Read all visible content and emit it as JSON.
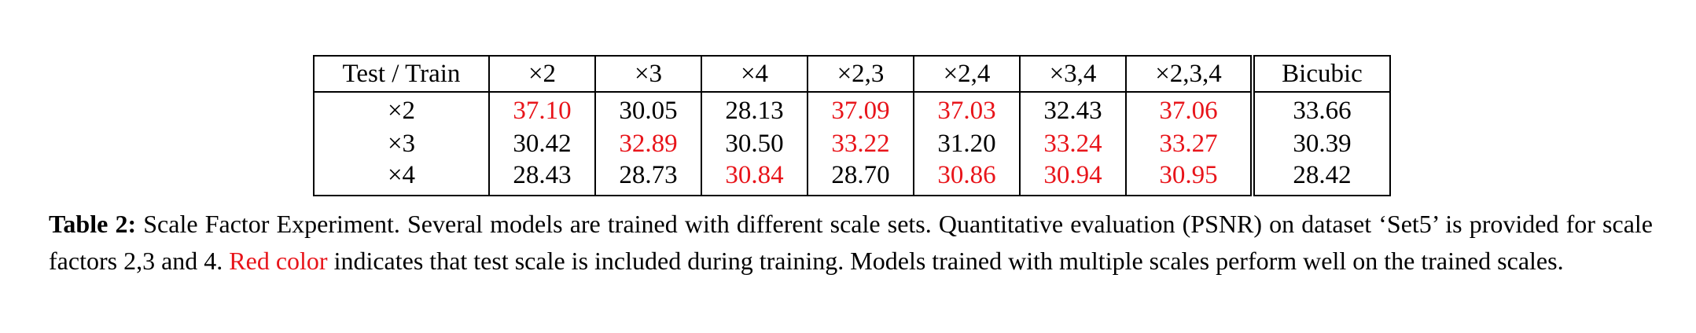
{
  "table": {
    "corner_header": "Test / Train",
    "columns": [
      "×2",
      "×3",
      "×4",
      "×2,3",
      "×2,4",
      "×3,4",
      "×2,3,4",
      "Bicubic"
    ],
    "rows": [
      {
        "label": "×2",
        "values": [
          "37.10",
          "30.05",
          "28.13",
          "37.09",
          "37.03",
          "32.43",
          "37.06",
          "33.66"
        ],
        "highlighted": [
          true,
          false,
          false,
          true,
          true,
          false,
          true,
          false
        ]
      },
      {
        "label": "×3",
        "values": [
          "30.42",
          "32.89",
          "30.50",
          "33.22",
          "31.20",
          "33.24",
          "33.27",
          "30.39"
        ],
        "highlighted": [
          false,
          true,
          false,
          true,
          false,
          true,
          true,
          false
        ]
      },
      {
        "label": "×4",
        "values": [
          "28.43",
          "28.73",
          "30.84",
          "28.70",
          "30.86",
          "30.94",
          "30.95",
          "28.42"
        ],
        "highlighted": [
          false,
          false,
          true,
          false,
          true,
          true,
          true,
          false
        ]
      }
    ],
    "highlight_color": "#e8141a"
  },
  "caption": {
    "label": "Table 2:",
    "text_before": " Scale Factor Experiment. Several models are trained with different scale sets. Quantitative evaluation (PSNR) on dataset ‘Set5’ is provided for scale factors 2,3 and 4. ",
    "red_phrase": "Red color",
    "text_after": " indicates that test scale is included during training. Models trained with multiple scales perform well on the trained scales."
  }
}
